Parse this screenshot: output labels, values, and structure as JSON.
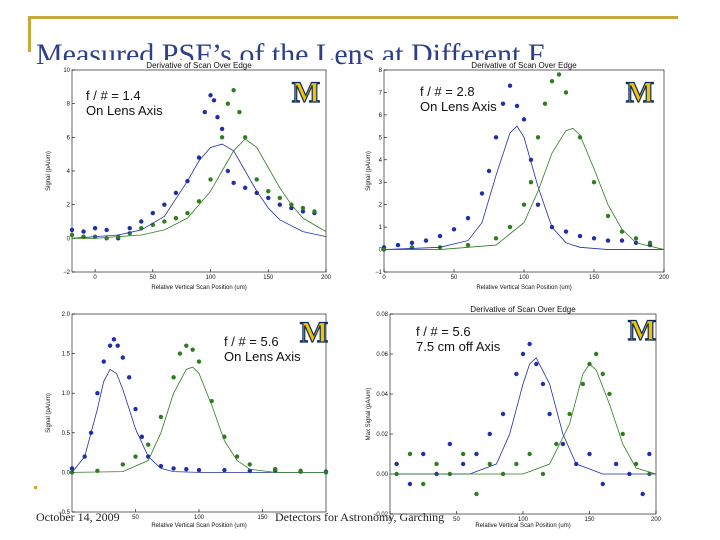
{
  "slide": {
    "title": "Measured PSF’s of the Lens at Different F",
    "footer_date": "October 14, 2009",
    "footer_event": "Detectors for Astronomy, Garching"
  },
  "colors": {
    "blue": "#1f2fa8",
    "green": "#2e7d1f",
    "frame": "#c9a73a"
  },
  "chart_data": [
    {
      "type": "scatter",
      "title": "Derivative of Scan Over Edge",
      "xlabel": "Relative Vertical Scan Position (um)",
      "ylabel": "Signal (pA/um)",
      "annotation_lines": [
        "f / # = 1.4",
        "On Lens Axis"
      ],
      "logo": "M",
      "xlim": [
        -20,
        200
      ],
      "ylim": [
        -2,
        10
      ],
      "xticks": [
        0,
        50,
        100,
        150,
        200
      ],
      "yticks": [
        -2,
        0,
        2,
        4,
        6,
        8,
        10
      ],
      "xtick_labels": [
        "0",
        "50",
        "100",
        "150",
        "200"
      ],
      "ytick_labels": [
        "−2",
        "0",
        "2",
        "4",
        "6",
        "8",
        "10"
      ],
      "series": [
        {
          "kind": "points",
          "color_key": "blue",
          "x": [
            -20,
            -10,
            0,
            10,
            20,
            30,
            40,
            50,
            60,
            70,
            80,
            90,
            95,
            100,
            103,
            106,
            110,
            115,
            120,
            130,
            140,
            150,
            160,
            170,
            180,
            190
          ],
          "y": [
            0.5,
            0.4,
            0.6,
            0.5,
            0.0,
            0.6,
            1.0,
            1.5,
            2.0,
            2.7,
            3.4,
            4.8,
            7.5,
            8.5,
            8.2,
            7.2,
            6.5,
            4.0,
            3.3,
            3.0,
            2.7,
            2.4,
            2.0,
            1.8,
            1.6,
            1.5
          ]
        },
        {
          "kind": "points",
          "color_key": "green",
          "x": [
            -20,
            -10,
            0,
            10,
            20,
            30,
            40,
            50,
            60,
            70,
            80,
            90,
            100,
            110,
            115,
            120,
            125,
            130,
            140,
            150,
            160,
            170,
            180,
            190
          ],
          "y": [
            0.2,
            0.1,
            0.1,
            0.0,
            0.1,
            0.3,
            0.6,
            0.8,
            1.0,
            1.2,
            1.5,
            2.2,
            3.5,
            6.0,
            8.0,
            8.8,
            7.5,
            6.0,
            3.5,
            2.8,
            2.4,
            2.0,
            1.8,
            1.6
          ]
        },
        {
          "kind": "line",
          "color_key": "blue",
          "x": [
            -20,
            0,
            20,
            40,
            60,
            80,
            90,
            100,
            110,
            120,
            130,
            140,
            150,
            160,
            180,
            200
          ],
          "y": [
            0.0,
            0.1,
            0.2,
            0.5,
            1.3,
            3.4,
            4.6,
            5.4,
            5.6,
            5.2,
            4.0,
            2.8,
            1.8,
            1.1,
            0.4,
            0.1
          ]
        },
        {
          "kind": "line",
          "color_key": "green",
          "x": [
            -20,
            0,
            20,
            40,
            60,
            80,
            100,
            110,
            120,
            130,
            140,
            150,
            160,
            170,
            180,
            200
          ],
          "y": [
            0.0,
            0.0,
            0.1,
            0.2,
            0.5,
            1.2,
            2.8,
            4.0,
            5.2,
            5.9,
            5.4,
            4.2,
            3.0,
            2.0,
            1.2,
            0.4
          ]
        }
      ]
    },
    {
      "type": "scatter",
      "title": "Derivative of Scan Over Edge",
      "xlabel": "Relative Vertical Scan Position (um)",
      "ylabel": "Signal (pA/um)",
      "annotation_lines": [
        "f / # = 2.8",
        "On Lens Axis"
      ],
      "logo": "M",
      "xlim": [
        0,
        200
      ],
      "ylim": [
        -1,
        8
      ],
      "xticks": [
        0,
        50,
        100,
        150,
        200
      ],
      "yticks": [
        -1,
        0,
        1,
        2,
        3,
        4,
        5,
        6,
        7,
        8
      ],
      "xtick_labels": [
        "0",
        "50",
        "100",
        "150",
        "200"
      ],
      "ytick_labels": [
        "−1",
        "0",
        "1",
        "2",
        "3",
        "4",
        "5",
        "6",
        "7",
        "8"
      ],
      "series": [
        {
          "kind": "points",
          "color_key": "blue",
          "x": [
            0,
            10,
            20,
            30,
            40,
            50,
            60,
            70,
            75,
            80,
            85,
            90,
            95,
            100,
            105,
            110,
            120,
            130,
            140,
            150,
            160,
            170,
            180,
            190
          ],
          "y": [
            0.1,
            0.2,
            0.3,
            0.4,
            0.6,
            0.9,
            1.4,
            2.5,
            3.5,
            5.0,
            6.5,
            7.3,
            6.4,
            5.8,
            4.0,
            2.0,
            1.0,
            0.8,
            0.6,
            0.5,
            0.4,
            0.4,
            0.3,
            0.2
          ]
        },
        {
          "kind": "points",
          "color_key": "green",
          "x": [
            0,
            20,
            40,
            60,
            80,
            90,
            100,
            105,
            110,
            115,
            120,
            125,
            130,
            140,
            150,
            160,
            170,
            180,
            190
          ],
          "y": [
            0.0,
            0.1,
            0.1,
            0.2,
            0.5,
            1.0,
            2.0,
            3.0,
            5.0,
            6.5,
            7.5,
            7.8,
            7.0,
            5.0,
            3.0,
            1.5,
            0.8,
            0.5,
            0.3
          ]
        },
        {
          "kind": "line",
          "color_key": "blue",
          "x": [
            0,
            40,
            60,
            70,
            80,
            90,
            95,
            100,
            110,
            120,
            130,
            140,
            160,
            200
          ],
          "y": [
            0.0,
            0.1,
            0.4,
            1.2,
            3.3,
            5.2,
            5.5,
            5.0,
            2.8,
            1.0,
            0.3,
            0.1,
            0.0,
            0.0
          ]
        },
        {
          "kind": "line",
          "color_key": "green",
          "x": [
            0,
            40,
            80,
            100,
            110,
            120,
            130,
            135,
            140,
            150,
            160,
            170,
            180,
            200
          ],
          "y": [
            0.0,
            0.0,
            0.2,
            1.2,
            2.6,
            4.3,
            5.3,
            5.4,
            5.1,
            3.6,
            2.0,
            0.9,
            0.3,
            0.0
          ]
        }
      ]
    },
    {
      "type": "scatter",
      "title": "",
      "xlabel": "Relative Vertical Scan Position (um)",
      "ylabel": "Signal (pA/um)",
      "annotation_lines": [
        "f / # = 5.6",
        "On Lens Axis"
      ],
      "logo": "M",
      "xlim": [
        0,
        200
      ],
      "ylim": [
        -0.5,
        2.0
      ],
      "xticks": [
        50,
        100,
        150
      ],
      "yticks": [
        -0.5,
        0.0,
        0.5,
        1.0,
        1.5,
        2.0
      ],
      "xtick_labels": [
        "50",
        "100",
        "150"
      ],
      "ytick_labels": [
        "−0.5",
        "0.0",
        "0.5",
        "1.0",
        "1.5",
        "2.0"
      ],
      "series": [
        {
          "kind": "points",
          "color_key": "blue",
          "x": [
            0,
            10,
            15,
            20,
            25,
            30,
            33,
            36,
            40,
            45,
            50,
            55,
            60,
            70,
            80,
            90,
            100,
            120,
            140,
            160,
            180,
            200
          ],
          "y": [
            0.05,
            0.2,
            0.5,
            1.0,
            1.4,
            1.6,
            1.68,
            1.6,
            1.45,
            1.2,
            0.8,
            0.45,
            0.2,
            0.08,
            0.05,
            0.04,
            0.03,
            0.03,
            0.02,
            0.02,
            0.01,
            0.01
          ]
        },
        {
          "kind": "points",
          "color_key": "green",
          "x": [
            0,
            20,
            40,
            50,
            60,
            70,
            80,
            85,
            90,
            95,
            100,
            110,
            120,
            130,
            140,
            160,
            180,
            200
          ],
          "y": [
            0.0,
            0.02,
            0.1,
            0.2,
            0.35,
            0.7,
            1.2,
            1.5,
            1.6,
            1.55,
            1.4,
            0.9,
            0.45,
            0.2,
            0.1,
            0.04,
            0.02,
            0.0
          ]
        },
        {
          "kind": "line",
          "color_key": "blue",
          "x": [
            0,
            10,
            20,
            25,
            30,
            35,
            40,
            50,
            60,
            70,
            80,
            100,
            200
          ],
          "y": [
            0.0,
            0.2,
            0.8,
            1.15,
            1.3,
            1.25,
            1.05,
            0.55,
            0.2,
            0.05,
            0.01,
            0.0,
            0.0
          ]
        },
        {
          "kind": "line",
          "color_key": "green",
          "x": [
            0,
            40,
            60,
            70,
            80,
            90,
            95,
            100,
            110,
            120,
            130,
            140,
            160,
            200
          ],
          "y": [
            0.0,
            0.01,
            0.15,
            0.5,
            1.0,
            1.3,
            1.33,
            1.25,
            0.85,
            0.4,
            0.15,
            0.04,
            0.0,
            0.0
          ]
        }
      ]
    },
    {
      "type": "scatter",
      "title": "Derivative of Scan Over Edge",
      "xlabel": "Relative Vertical Scan Position (um)",
      "ylabel": "Max Signal (pA/um)",
      "annotation_lines": [
        "f / # = 5.6",
        "7.5 cm off Axis"
      ],
      "logo": "M",
      "xlim": [
        0,
        200
      ],
      "ylim": [
        -0.02,
        0.08
      ],
      "xticks": [
        0,
        50,
        100,
        150,
        200
      ],
      "yticks": [
        -0.02,
        0.0,
        0.02,
        0.04,
        0.06,
        0.08
      ],
      "xtick_labels": [
        "0",
        "50",
        "100",
        "150",
        "200"
      ],
      "ytick_labels": [
        "−0.02",
        "0.00",
        "0.02",
        "0.04",
        "0.06",
        "0.08"
      ],
      "series": [
        {
          "kind": "points",
          "color_key": "blue",
          "x": [
            5,
            15,
            25,
            35,
            45,
            55,
            65,
            75,
            85,
            95,
            100,
            105,
            110,
            115,
            120,
            130,
            140,
            150,
            160,
            170,
            180,
            190,
            195
          ],
          "y": [
            0.005,
            -0.005,
            0.01,
            0.0,
            0.015,
            0.005,
            0.01,
            0.02,
            0.03,
            0.05,
            0.06,
            0.065,
            0.055,
            0.045,
            0.03,
            0.015,
            0.005,
            0.01,
            -0.005,
            0.005,
            0.0,
            -0.01,
            0.01
          ]
        },
        {
          "kind": "points",
          "color_key": "green",
          "x": [
            5,
            15,
            25,
            35,
            45,
            55,
            65,
            75,
            85,
            95,
            105,
            115,
            125,
            135,
            145,
            150,
            155,
            160,
            165,
            175,
            185,
            195
          ],
          "y": [
            0.0,
            0.01,
            -0.005,
            0.005,
            0.0,
            0.01,
            -0.01,
            0.005,
            0.0,
            0.005,
            0.01,
            0.0,
            0.015,
            0.03,
            0.045,
            0.055,
            0.06,
            0.05,
            0.04,
            0.02,
            0.005,
            0.0
          ]
        },
        {
          "kind": "line",
          "color_key": "blue",
          "x": [
            0,
            60,
            80,
            90,
            100,
            105,
            110,
            120,
            130,
            140,
            160,
            200
          ],
          "y": [
            0.0,
            0.0,
            0.005,
            0.02,
            0.045,
            0.055,
            0.058,
            0.045,
            0.02,
            0.005,
            0.0,
            0.0
          ]
        },
        {
          "kind": "line",
          "color_key": "green",
          "x": [
            0,
            100,
            120,
            135,
            145,
            150,
            155,
            165,
            175,
            185,
            200
          ],
          "y": [
            0.0,
            0.0,
            0.005,
            0.025,
            0.05,
            0.055,
            0.052,
            0.035,
            0.015,
            0.003,
            0.0
          ]
        }
      ]
    }
  ]
}
